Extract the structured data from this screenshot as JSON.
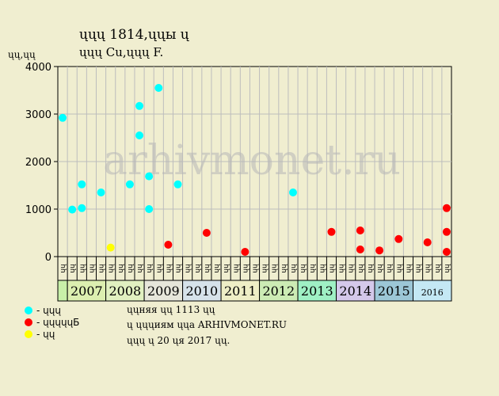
{
  "header": {
    "title": "ųųų 1814,ųųы ų",
    "subtitle": "ųųų Cu,ųųų F.",
    "unit": "ųų,ųų"
  },
  "watermark": "arhivmonet.ru",
  "legend": [
    {
      "label": "- ųųų",
      "color": "#00ffff"
    },
    {
      "label": "- ųųųųųБ",
      "color": "#ff0000"
    },
    {
      "label": "- ųų",
      "color": "#ffff00"
    }
  ],
  "notes": [
    "ųųняя ųų 1113 ųų",
    "ų ųųųиям ųųа ARHIVMONET.RU",
    "ųųų ų 20 ųя 2017 ųų."
  ],
  "chart_data": {
    "type": "scatter",
    "ylim": [
      0,
      4000
    ],
    "yticks": [
      "0",
      "1000",
      "2000",
      "3000",
      "4000"
    ],
    "grid": true,
    "x_slots": 41,
    "quarter_labels": [
      "ųų",
      "ųų",
      "ųų",
      "ųų",
      "ųų",
      "ųų",
      "ųų",
      "ųų",
      "ųų",
      "ųų",
      "ųų",
      "ųų",
      "ųų",
      "ųų",
      "ųų",
      "ųų",
      "ųų",
      "ųų",
      "ųų",
      "ųų",
      "ųų",
      "ųų",
      "ųų",
      "ųų",
      "ųų",
      "ųų",
      "ųų",
      "ųų",
      "ųų",
      "ųų",
      "ųų",
      "ųų",
      "ųų",
      "ųų",
      "ųų",
      "ųų",
      "ųų",
      "ųų",
      "ųų",
      "ųų",
      "ųų"
    ],
    "years": [
      {
        "label": "",
        "start": 0,
        "span": 1,
        "color": "#c8f0a8"
      },
      {
        "label": "2007",
        "start": 1,
        "span": 4,
        "color": "#dcefb0"
      },
      {
        "label": "2008",
        "start": 5,
        "span": 4,
        "color": "#e0f0c0"
      },
      {
        "label": "2009",
        "start": 9,
        "span": 4,
        "color": "#e6e6da"
      },
      {
        "label": "2010",
        "start": 13,
        "span": 4,
        "color": "#d6e2ea"
      },
      {
        "label": "2011",
        "start": 17,
        "span": 4,
        "color": "#eeeec6"
      },
      {
        "label": "2012",
        "start": 21,
        "span": 4,
        "color": "#ccebb4"
      },
      {
        "label": "2013",
        "start": 25,
        "span": 4,
        "color": "#9ff0c4"
      },
      {
        "label": "2014",
        "start": 29,
        "span": 4,
        "color": "#d4c8ea"
      },
      {
        "label": "2015",
        "start": 33,
        "span": 4,
        "color": "#9cc6d6"
      },
      {
        "label": "2016",
        "start": 37,
        "span": 4,
        "color": "#c4e8f4",
        "small": true
      }
    ],
    "series": [
      {
        "color": "#00ffff",
        "points": [
          {
            "slot": 0,
            "y": 2920
          },
          {
            "slot": 1,
            "y": 990
          },
          {
            "slot": 2,
            "y": 1520
          },
          {
            "slot": 2,
            "y": 1020
          },
          {
            "slot": 4,
            "y": 1350
          },
          {
            "slot": 7,
            "y": 1520
          },
          {
            "slot": 8,
            "y": 3170
          },
          {
            "slot": 8,
            "y": 2550
          },
          {
            "slot": 9,
            "y": 1000
          },
          {
            "slot": 9,
            "y": 1690
          },
          {
            "slot": 10,
            "y": 3550
          },
          {
            "slot": 12,
            "y": 1520
          },
          {
            "slot": 24,
            "y": 1350
          }
        ]
      },
      {
        "color": "#ff0000",
        "points": [
          {
            "slot": 11,
            "y": 250
          },
          {
            "slot": 15,
            "y": 500
          },
          {
            "slot": 19,
            "y": 100
          },
          {
            "slot": 28,
            "y": 520
          },
          {
            "slot": 31,
            "y": 550
          },
          {
            "slot": 31,
            "y": 150
          },
          {
            "slot": 33,
            "y": 130
          },
          {
            "slot": 35,
            "y": 370
          },
          {
            "slot": 38,
            "y": 300
          },
          {
            "slot": 40,
            "y": 520
          },
          {
            "slot": 40,
            "y": 1020
          },
          {
            "slot": 40,
            "y": 100
          }
        ]
      },
      {
        "color": "#ffff00",
        "points": [
          {
            "slot": 5,
            "y": 190
          }
        ]
      }
    ]
  }
}
